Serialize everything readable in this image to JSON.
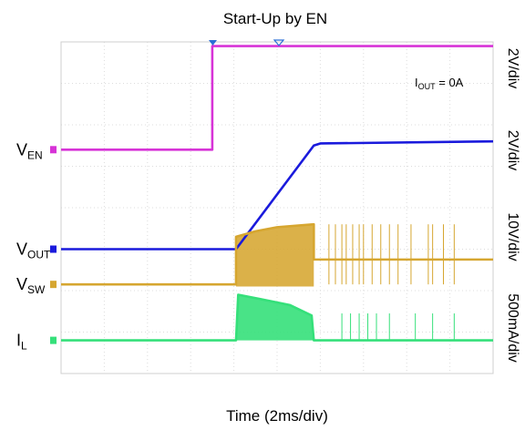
{
  "chart_data": {
    "type": "line",
    "title": "Start-Up by EN",
    "xlabel": "Time (2ms/div)",
    "x_divisions": 10,
    "y_divisions": 8,
    "annotation": {
      "prefix": "I",
      "sub": "OUT",
      "suffix": " = 0A"
    },
    "series": [
      {
        "key": "ven",
        "label_main": "V",
        "label_sub": "EN",
        "scale": "2V/div",
        "color": "#d733d7",
        "baseline_div": 5.4,
        "x": [
          0,
          3.5,
          3.5,
          10
        ],
        "y": [
          0,
          0,
          2.5,
          2.5
        ]
      },
      {
        "key": "vout",
        "label_main": "V",
        "label_sub": "OUT",
        "scale": "2V/div",
        "color": "#1a1adc",
        "baseline_div": 3.0,
        "x": [
          0,
          4.05,
          5.85,
          6.0,
          10
        ],
        "y": [
          0,
          0,
          2.5,
          2.55,
          2.6
        ]
      },
      {
        "key": "vsw",
        "label_main": "V",
        "label_sub": "SW",
        "scale": "10V/div",
        "color": "#d6a630",
        "baseline_div": 2.15,
        "x": [
          0,
          4.05,
          4.05,
          4.5,
          5.0,
          5.85,
          5.85,
          10
        ],
        "y": [
          0,
          0,
          1.15,
          1.28,
          1.38,
          1.45,
          0.6,
          0.6
        ]
      },
      {
        "key": "il",
        "label_main": "I",
        "label_sub": "L",
        "scale": "500mA/div",
        "color": "#35e07a",
        "baseline_div": 0.8,
        "x": [
          0,
          4.05,
          4.1,
          4.6,
          5.3,
          5.8,
          5.85,
          10
        ],
        "y": [
          0,
          0,
          1.1,
          1.0,
          0.85,
          0.6,
          0,
          0
        ]
      }
    ],
    "vsw_pulses_x": [
      6.2,
      6.35,
      6.5,
      6.6,
      6.75,
      6.9,
      7.0,
      7.2,
      7.4,
      7.6,
      7.8,
      8.1,
      8.5,
      8.6,
      8.85,
      9.1
    ],
    "il_pulses_x": [
      6.5,
      6.7,
      6.9,
      7.1,
      7.3,
      7.6,
      8.2,
      8.6,
      9.1
    ]
  }
}
